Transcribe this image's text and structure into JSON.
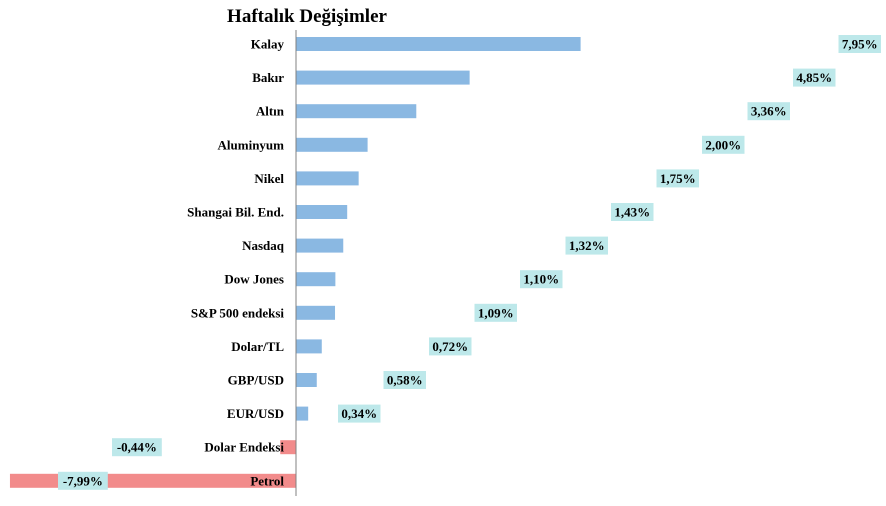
{
  "chart_data": {
    "type": "bar",
    "orientation": "horizontal",
    "title": "Haftalık Değişimler",
    "categories": [
      "Kalay",
      "Bakır",
      "Altın",
      "Aluminyum",
      "Nikel",
      "Shangai Bil. End.",
      "Nasdaq",
      "Dow Jones",
      "S&P 500 endeksi",
      "Dolar/TL",
      "GBP/USD",
      "EUR/USD",
      "Dolar Endeksi",
      "Petrol"
    ],
    "values": [
      7.95,
      4.85,
      3.36,
      2.0,
      1.75,
      1.43,
      1.32,
      1.1,
      1.09,
      0.72,
      0.58,
      0.34,
      -0.44,
      -7.99
    ],
    "data_labels": [
      "7,95%",
      "4,85%",
      "3,36%",
      "2,00%",
      "1,75%",
      "1,43%",
      "1,32%",
      "1,10%",
      "1,09%",
      "0,72%",
      "0,58%",
      "0,34%",
      "-0,44%",
      "-7,99%"
    ],
    "xlabel": "",
    "ylabel": "",
    "grid": false,
    "legend": "none",
    "colors": {
      "positive": "#8ab8e2",
      "negative": "#f28b8b",
      "label_bg": "#bde8ea",
      "axis": "#808080"
    }
  }
}
